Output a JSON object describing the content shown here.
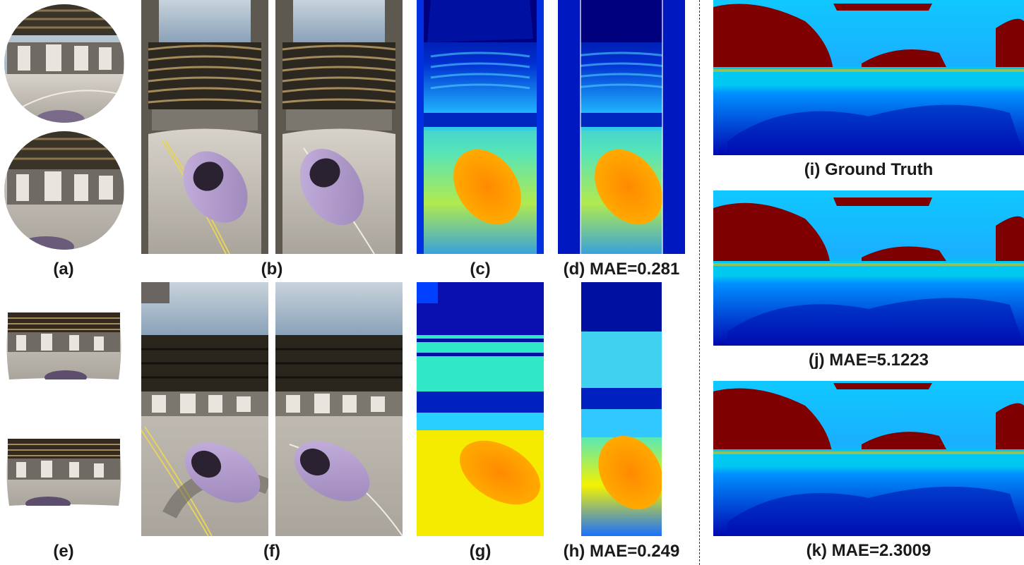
{
  "captions": {
    "a": "(a)",
    "b": "(b)",
    "c": "(c)",
    "d": "(d) MAE=0.281",
    "e": "(e)",
    "f": "(f)",
    "g": "(g)",
    "h": "(h) MAE=0.249",
    "i": "(i) Ground Truth",
    "j": "(j) MAE=5.1223",
    "k": "(k) MAE=2.3009"
  },
  "colors": {
    "jet_dark_blue": "#00007f",
    "jet_blue": "#0040ff",
    "jet_cyan": "#00d0ff",
    "jet_yellow": "#f4f200",
    "jet_orange": "#ff7a00",
    "jet_dark_red": "#7f0000",
    "car_purple": "#b79fd0",
    "road_gray": "#c9c4bc",
    "sky_blue": "#9fb7cc"
  }
}
